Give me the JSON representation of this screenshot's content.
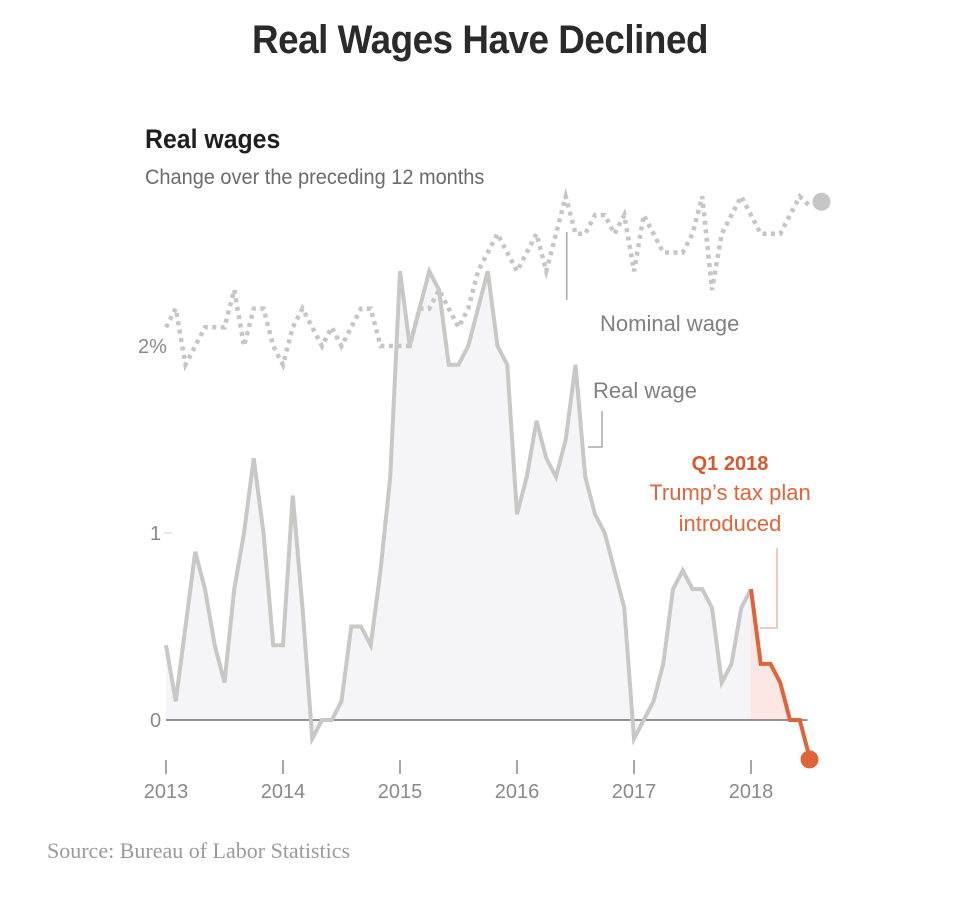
{
  "header": {
    "title": "Real Wages Have Declined"
  },
  "source": "Source: Bureau of Labor Statistics",
  "colors": {
    "line_gray": "#c8c8c6",
    "area_gray": "#f5f5f7",
    "highlight_orange": "#e0643a",
    "highlight_area": "#fde7e3",
    "axis": "#555555",
    "nominal_dots": "#c6c6c6"
  },
  "chart_data": {
    "type": "line",
    "title": "Real wages",
    "subtitle": "Change over the preceding 12 months",
    "xlabel": "",
    "ylabel": "",
    "x_start": "2013-01",
    "x_ticks": [
      "2013",
      "2014",
      "2015",
      "2016",
      "2017",
      "2018"
    ],
    "y_ticks": [
      {
        "value": 0,
        "label": "0"
      },
      {
        "value": 1,
        "label": "1"
      },
      {
        "value": 2,
        "label": "2%"
      }
    ],
    "ylim": [
      -0.3,
      2.9
    ],
    "grid": false,
    "series": [
      {
        "name": "Real wage",
        "style": "solid-area",
        "values": [
          0.4,
          0.1,
          0.5,
          0.9,
          0.7,
          0.4,
          0.2,
          0.7,
          1.0,
          1.4,
          1.0,
          0.4,
          0.4,
          1.2,
          0.6,
          -0.1,
          0.0,
          0.0,
          0.1,
          0.5,
          0.5,
          0.4,
          0.8,
          1.3,
          2.4,
          2.0,
          2.2,
          2.4,
          2.3,
          1.9,
          1.9,
          2.0,
          2.2,
          2.4,
          2.0,
          1.9,
          1.1,
          1.3,
          1.6,
          1.4,
          1.3,
          1.5,
          1.9,
          1.3,
          1.1,
          1.0,
          0.8,
          0.6,
          -0.1,
          0.0,
          0.1,
          0.3,
          0.7,
          0.8,
          0.7,
          0.7,
          0.6,
          0.2,
          0.3,
          0.6,
          0.7,
          0.3,
          0.3,
          0.2,
          0.0,
          0.0,
          -0.2
        ],
        "highlight_from_index": 60
      },
      {
        "name": "Nominal wage",
        "style": "dotted",
        "values": [
          2.1,
          2.2,
          1.9,
          2.0,
          2.1,
          2.1,
          2.1,
          2.3,
          2.0,
          2.2,
          2.2,
          2.0,
          1.9,
          2.1,
          2.2,
          2.1,
          2.0,
          2.1,
          2.0,
          2.1,
          2.2,
          2.2,
          2.0,
          2.0,
          2.0,
          2.0,
          2.2,
          2.2,
          2.3,
          2.2,
          2.1,
          2.2,
          2.4,
          2.5,
          2.6,
          2.5,
          2.4,
          2.5,
          2.6,
          2.4,
          2.6,
          2.8,
          2.6,
          2.6,
          2.7,
          2.7,
          2.6,
          2.7,
          2.4,
          2.7,
          2.6,
          2.5,
          2.5,
          2.5,
          2.6,
          2.8,
          2.3,
          2.6,
          2.7,
          2.8,
          2.7,
          2.6,
          2.6,
          2.6,
          2.7,
          2.8,
          2.75
        ]
      }
    ],
    "annotations": [
      {
        "id": "nominal",
        "text": "Nominal wage",
        "index": 41
      },
      {
        "id": "real",
        "text": "Real wage",
        "index": 42
      },
      {
        "id": "tax",
        "heading": "Q1 2018",
        "line1": "Trump’s tax plan",
        "line2": "introduced",
        "index": 60
      }
    ]
  }
}
